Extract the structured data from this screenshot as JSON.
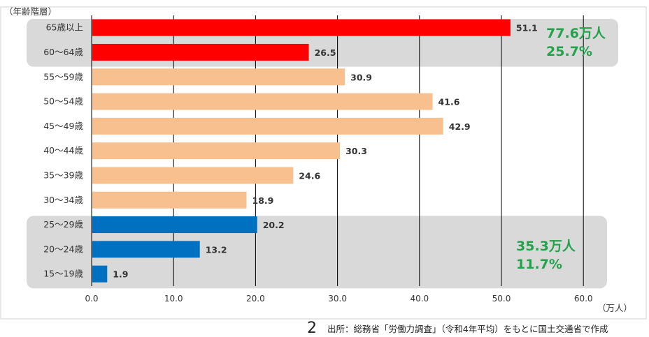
{
  "chart_data": {
    "type": "bar",
    "orientation": "horizontal",
    "categories": [
      "65歳以上",
      "60〜64歳",
      "55〜59歳",
      "50〜54歳",
      "45〜49歳",
      "40〜44歳",
      "35〜39歳",
      "30〜34歳",
      "25〜29歳",
      "20〜24歳",
      "15〜19歳"
    ],
    "values": [
      51.1,
      26.5,
      30.9,
      41.6,
      42.9,
      30.3,
      24.6,
      18.9,
      20.2,
      13.2,
      1.9
    ],
    "value_labels": [
      "51.1",
      "26.5",
      "30.9",
      "41.6",
      "42.9",
      "30.3",
      "24.6",
      "18.9",
      "20.2",
      "13.2",
      "1.9"
    ],
    "colors": [
      "#ff0000",
      "#ff0000",
      "#f9c08f",
      "#f9c08f",
      "#f9c08f",
      "#f9c08f",
      "#f9c08f",
      "#f9c08f",
      "#0070c0",
      "#0070c0",
      "#0070c0"
    ],
    "ylabel": "（年齢階層）",
    "xlabel": "（万人）",
    "xlim": [
      0,
      60
    ],
    "xticks": [
      0,
      10,
      20,
      30,
      40,
      50,
      60
    ],
    "xtick_labels": [
      "0.0",
      "10.0",
      "20.0",
      "30.0",
      "40.0",
      "50.0",
      "60.0"
    ],
    "grid": "vertical",
    "highlight_groups": [
      {
        "categories": [
          "65歳以上",
          "60〜64歳"
        ],
        "callout": [
          "77.6万人",
          "25.7%"
        ],
        "color": "#22a24a"
      },
      {
        "categories": [
          "25〜29歳",
          "20〜24歳",
          "15〜19歳"
        ],
        "callout": [
          "35.3万人",
          "11.7%"
        ],
        "color": "#22a24a"
      }
    ]
  },
  "footer": {
    "page_number": "2",
    "source": "出所：総務省「労働力調査」（令和4年平均）をもとに国土交通省で作成"
  }
}
